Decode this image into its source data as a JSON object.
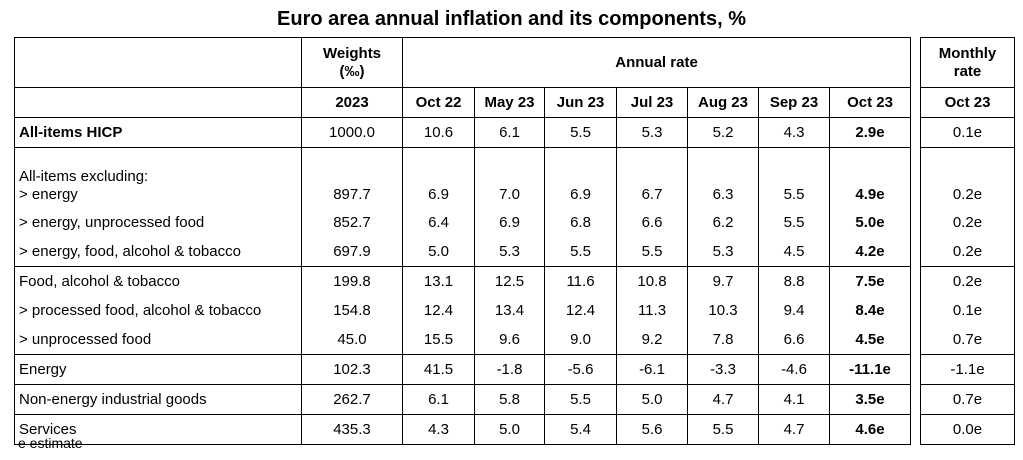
{
  "title": "Euro area annual inflation and its components, %",
  "header": {
    "weights_label": "Weights",
    "weights_unit": "(‰)",
    "annual_rate_label": "Annual rate",
    "monthly_rate_label": "Monthly",
    "monthly_rate_label2": "rate",
    "year": "2023",
    "months": [
      "Oct 22",
      "May 23",
      "Jun 23",
      "Jul 23",
      "Aug 23",
      "Sep 23",
      "Oct 23"
    ],
    "monthly_month": "Oct 23"
  },
  "rows": [
    {
      "label": "All-items HICP",
      "weight": "1000.0",
      "values": [
        "10.6",
        "6.1",
        "5.5",
        "5.3",
        "5.2",
        "4.3",
        "2.9e"
      ],
      "monthly": "0.1e"
    },
    {
      "label_prefix": "All-items excluding:",
      "label": "> energy",
      "weight": "897.7",
      "values": [
        "6.9",
        "7.0",
        "6.9",
        "6.7",
        "6.3",
        "5.5",
        "4.9e"
      ],
      "monthly": "0.2e"
    },
    {
      "label": "> energy, unprocessed food",
      "weight": "852.7",
      "values": [
        "6.4",
        "6.9",
        "6.8",
        "6.6",
        "6.2",
        "5.5",
        "5.0e"
      ],
      "monthly": "0.2e"
    },
    {
      "label": "> energy, food, alcohol & tobacco",
      "weight": "697.9",
      "values": [
        "5.0",
        "5.3",
        "5.5",
        "5.5",
        "5.3",
        "4.5",
        "4.2e"
      ],
      "monthly": "0.2e"
    },
    {
      "label": "Food, alcohol & tobacco",
      "weight": "199.8",
      "values": [
        "13.1",
        "12.5",
        "11.6",
        "10.8",
        "9.7",
        "8.8",
        "7.5e"
      ],
      "monthly": "0.2e"
    },
    {
      "label": "> processed food, alcohol & tobacco",
      "weight": "154.8",
      "values": [
        "12.4",
        "13.4",
        "12.4",
        "11.3",
        "10.3",
        "9.4",
        "8.4e"
      ],
      "monthly": "0.1e"
    },
    {
      "label": "> unprocessed food",
      "weight": "45.0",
      "values": [
        "15.5",
        "9.6",
        "9.0",
        "9.2",
        "7.8",
        "6.6",
        "4.5e"
      ],
      "monthly": "0.7e"
    },
    {
      "label": "Energy",
      "weight": "102.3",
      "values": [
        "41.5",
        "-1.8",
        "-5.6",
        "-6.1",
        "-3.3",
        "-4.6",
        "-11.1e"
      ],
      "monthly": "-1.1e"
    },
    {
      "label": "Non-energy industrial goods",
      "weight": "262.7",
      "values": [
        "6.1",
        "5.8",
        "5.5",
        "5.0",
        "4.7",
        "4.1",
        "3.5e"
      ],
      "monthly": "0.7e"
    },
    {
      "label": "Services",
      "weight": "435.3",
      "values": [
        "4.3",
        "5.0",
        "5.4",
        "5.6",
        "5.5",
        "4.7",
        "4.6e"
      ],
      "monthly": "0.0e"
    }
  ],
  "footnote": "e estimate"
}
